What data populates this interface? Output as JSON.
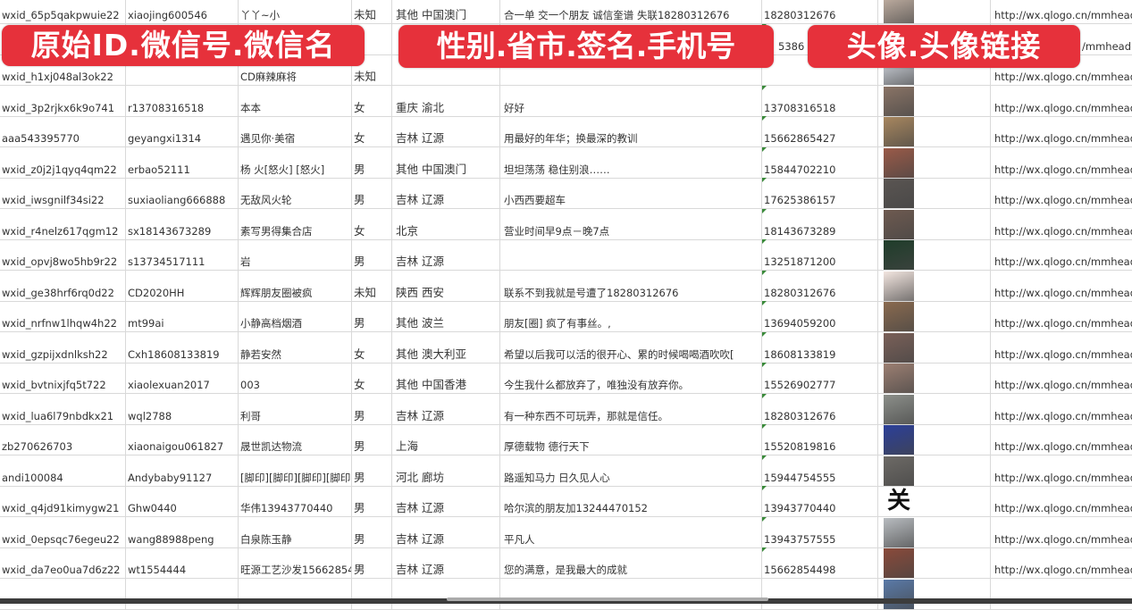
{
  "banners": {
    "left": "原始ID.微信号.微信名",
    "middle": "性别.省市.签名.手机号",
    "right": "头像.头像链接",
    "color": "#e6313b"
  },
  "rows": [
    {
      "id": "wxid_65p5qakpwuie22",
      "wechat": "xiaojing600546",
      "name": "丫丫~小",
      "sex": "未知",
      "region": "其他 中国澳门",
      "sign": "合一单 交一个朋友 诚信奎谱 失联18280312676",
      "phone": "18280312676",
      "avatar_color": "#c9b6a8",
      "url": "http://wx.qlogo.cn/mmhead"
    },
    {
      "id": "",
      "wechat": "",
      "name": "",
      "sex": "",
      "region": "",
      "sign": "",
      "phone": "5386",
      "avatar_color": "#8fa3c4",
      "url": "/mmhead"
    },
    {
      "id": "wxid_h1xj048al3ok22",
      "wechat": "",
      "name": "CD麻辣麻将",
      "sex": "未知",
      "region": "",
      "sign": "",
      "phone": "",
      "avatar_color": "#d8dde6",
      "url": "http://wx.qlogo.cn/mmhead"
    },
    {
      "id": "wxid_3p2rjkx6k9o741",
      "wechat": "r13708316518",
      "name": "本本",
      "sex": "女",
      "region": "重庆 渝北",
      "sign": "好好",
      "phone": "13708316518",
      "avatar_color": "#8a7466",
      "url": "http://wx.qlogo.cn/mmhead"
    },
    {
      "id": "aaa543395770",
      "wechat": "geyangxi1314",
      "name": "遇见你·美宿",
      "sex": "女",
      "region": "吉林 辽源",
      "sign": "用最好的年华；换最深的教训",
      "phone": "15662865427",
      "avatar_color": "#a8875f",
      "url": "http://wx.qlogo.cn/mmhead"
    },
    {
      "id": "wxid_z0j2j1qyq4qm22",
      "wechat": "erbao52111",
      "name": "杨 火[怒火] [怒火]",
      "sex": "男",
      "region": "其他 中国澳门",
      "sign": "坦坦荡荡 稳住别浪……",
      "phone": "15844702210",
      "avatar_color": "#9a5a48",
      "url": "http://wx.qlogo.cn/mmhead"
    },
    {
      "id": "wxid_iwsgnilf34si22",
      "wechat": "suxiaoliang666888",
      "name": "无敌风火轮",
      "sex": "男",
      "region": "吉林 辽源",
      "sign": "小西西要超车",
      "phone": "17625386157",
      "avatar_color": "#5a5552",
      "url": "http://wx.qlogo.cn/mmhead"
    },
    {
      "id": "wxid_r4nelz617qgm12",
      "wechat": "sx18143673289",
      "name": "素写男得集合店",
      "sex": "女",
      "region": "北京",
      "sign": "营业时间早9点－晚7点",
      "phone": "18143673289",
      "avatar_color": "#6e5a50",
      "url": "http://wx.qlogo.cn/mmhead"
    },
    {
      "id": "wxid_opvj8wo5hb9r22",
      "wechat": "s13734517111",
      "name": "岩",
      "sex": "男",
      "region": "吉林 辽源",
      "sign": "",
      "phone": "13251871200",
      "avatar_color": "#1f3d2a",
      "url": "http://wx.qlogo.cn/mmhead"
    },
    {
      "id": "wxid_ge38hrf6rq0d22",
      "wechat": "CD2020HH",
      "name": "辉辉朋友圈被疯",
      "sex": "未知",
      "region": "陕西 西安",
      "sign": "联系不到我就是号遭了18280312676",
      "phone": "18280312676",
      "avatar_color": "#f3e6e0",
      "url": "http://wx.qlogo.cn/mmhead"
    },
    {
      "id": "wxid_nrfnw1lhqw4h22",
      "wechat": "mt99ai",
      "name": "小静高档烟酒",
      "sex": "男",
      "region": "其他 波兰",
      "sign": "朋友[圈] 疯了有事丝。,",
      "phone": "13694059200",
      "avatar_color": "#8a6a4f",
      "url": "http://wx.qlogo.cn/mmhead"
    },
    {
      "id": "wxid_gzpijxdnlksh22",
      "wechat": "Cxh18608133819",
      "name": "静若安然",
      "sex": "女",
      "region": "其他 澳大利亚",
      "sign": "希望以后我可以活的很开心、累的时候喝喝酒吹吹[",
      "phone": "18608133819",
      "avatar_color": "#7a6058",
      "url": "http://wx.qlogo.cn/mmhead"
    },
    {
      "id": "wxid_bvtnixjfq5t722",
      "wechat": "xiaolexuan2017",
      "name": "003",
      "sex": "女",
      "region": "其他 中国香港",
      "sign": "今生我什么都放弃了，唯独没有放弃你。",
      "phone": "15526902777",
      "avatar_color": "#9c7f72",
      "url": "http://wx.qlogo.cn/mmhead"
    },
    {
      "id": "wxid_lua6l79nbdkx21",
      "wechat": "wql2788",
      "name": "利哥",
      "sex": "男",
      "region": "吉林 辽源",
      "sign": "有一种东西不可玩弄，那就是信任。",
      "phone": "18280312676",
      "avatar_color": "#8c8f8a",
      "url": "http://wx.qlogo.cn/mmhead"
    },
    {
      "id": "zb270626703",
      "wechat": "xiaonaigou061827",
      "name": "晟世凯达物流",
      "sex": "男",
      "region": "上海",
      "sign": "厚德载物 德行天下",
      "phone": "15520819816",
      "avatar_color": "#2b3f9a",
      "url": "http://wx.qlogo.cn/mmhead"
    },
    {
      "id": "andi100084",
      "wechat": "Andybaby91127",
      "name": "[脚印][脚印][脚印][脚印]",
      "sex": "男",
      "region": "河北 廊坊",
      "sign": "路遥知马力 日久见人心",
      "phone": "15944754555",
      "avatar_color": "#6d6a66",
      "url": "http://wx.qlogo.cn/mmhead"
    },
    {
      "id": "wxid_q4jd91kimygw21",
      "wechat": "Ghw0440",
      "name": "华伟13943770440",
      "sex": "男",
      "region": "吉林 辽源",
      "sign": "哈尔滨的朋友加13244470152",
      "phone": "13943770440",
      "avatar_color": "#ffffff",
      "url": "http://wx.qlogo.cn/mmhead"
    },
    {
      "id": "wxid_0epsqc76egeu22",
      "wechat": "wang88988peng",
      "name": "白泉陈玉静",
      "sex": "男",
      "region": "吉林 辽源",
      "sign": "平凡人",
      "phone": "13943757555",
      "avatar_color": "#b8bcc0",
      "url": "http://wx.qlogo.cn/mmhead"
    },
    {
      "id": "wxid_da7eo0ua7d6z22",
      "wechat": "wt1554444",
      "name": "旺源工艺沙发15662854",
      "sex": "男",
      "region": "吉林 辽源",
      "sign": "您的满意，是我最大的成就",
      "phone": "15662854498",
      "avatar_color": "#8a4a3a",
      "url": "http://wx.qlogo.cn/mmhead"
    },
    {
      "id": "",
      "wechat": "",
      "name": "",
      "sex": "",
      "region": "",
      "sign": "",
      "phone": "",
      "avatar_color": "#5a7aa8",
      "url": ""
    }
  ]
}
